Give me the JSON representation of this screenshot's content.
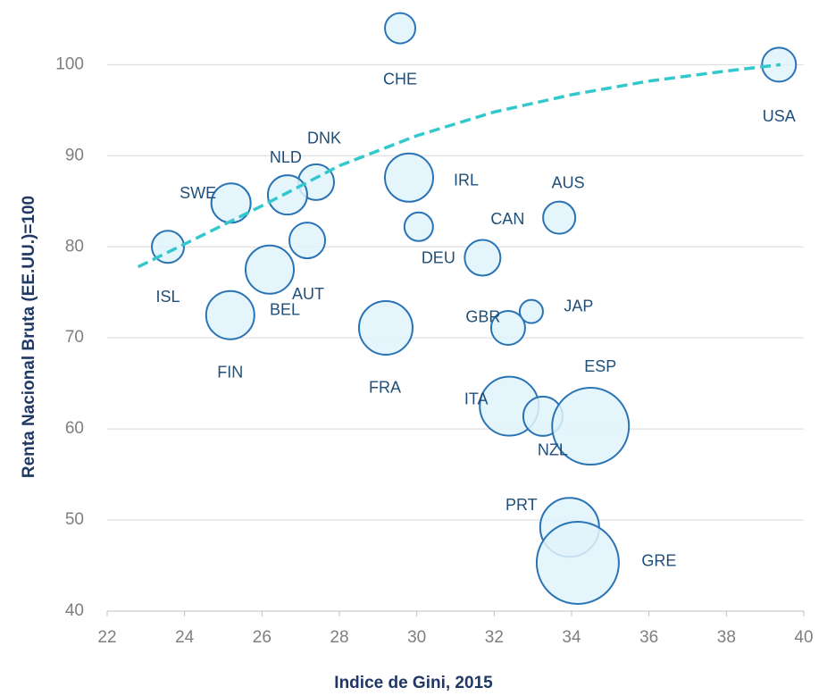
{
  "chart_data": {
    "type": "bubble",
    "x_label": "Indice de Gini, 2015",
    "y_label": "Renta Nacional  Bruta (EE.UU.)=100",
    "xlim": [
      22,
      40
    ],
    "xticks": [
      22,
      24,
      26,
      28,
      30,
      32,
      34,
      36,
      38,
      40
    ],
    "ylim": [
      40,
      107
    ],
    "yticks": [
      40,
      50,
      60,
      70,
      80,
      90,
      100
    ],
    "grid": true,
    "bubble_color": "#e0f3fb",
    "bubble_edge": "#2a74b5",
    "trend_color": "#33c9cc",
    "labels": [
      "CHE",
      "USA",
      "IRL",
      "DNK",
      "NLD",
      "SWE",
      "AUS",
      "DEU",
      "AUT",
      "ISL",
      "CAN",
      "BEL",
      "FIN",
      "JAP",
      "GBR",
      "FRA",
      "ITA",
      "NZL",
      "ESP",
      "PRT",
      "GRE"
    ],
    "x": [
      29.57,
      39.36,
      29.8,
      27.4,
      26.66,
      25.2,
      33.68,
      30.05,
      27.17,
      23.57,
      31.7,
      26.2,
      25.18,
      32.96,
      32.36,
      29.2,
      32.39,
      33.26,
      34.49,
      33.95,
      34.16
    ],
    "y": [
      104.0,
      100.0,
      87.6,
      87.1,
      85.7,
      84.8,
      83.2,
      82.2,
      80.7,
      80.0,
      78.8,
      77.5,
      72.5,
      72.9,
      71.1,
      71.1,
      62.5,
      61.4,
      60.3,
      49.2,
      45.3
    ],
    "sizes": [
      17,
      19,
      27,
      20,
      22,
      22,
      18,
      16,
      20,
      18,
      20,
      27,
      27,
      13,
      19,
      30,
      33,
      22,
      43,
      33,
      46
    ],
    "trend": {
      "x": [
        22.8,
        24,
        26,
        28,
        30,
        32,
        34,
        36,
        38,
        39.4
      ],
      "y": [
        77.8,
        80.3,
        84.5,
        88.9,
        92.2,
        94.8,
        96.7,
        98.2,
        99.3,
        100
      ]
    }
  }
}
